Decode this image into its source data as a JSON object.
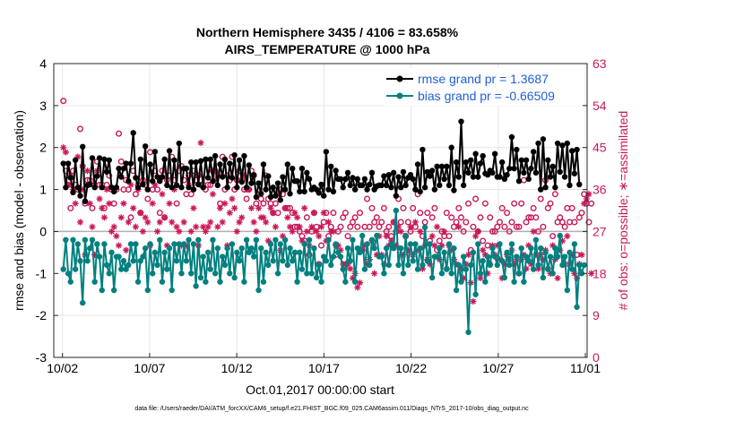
{
  "chart_data": {
    "type": "line",
    "title_line1": "Northern Hemisphere 3435 / 4106 = 83.658%",
    "title_line2": "AIRS_TEMPERATURE @ 1000 hPa",
    "ylabel": "rmse and bias (model - observation)",
    "ylabel_right": "# of obs: o=possible; ∗=assimilated",
    "xlabel": "Oct.01,2017 00:00:00 start",
    "footer": "data file: /Users/raeder/DAI/ATM_forcXX/CAM6_setup/f.e21.FHIST_BGC.f09_025.CAM6assim.011/Diags_NTrS_2017-10/obs_diag_output.nc",
    "ylim": [
      -3,
      4
    ],
    "ylim_right": [
      0,
      63
    ],
    "xlim": [
      0.5,
      31.1
    ],
    "yticks": [
      "4",
      "3",
      "2",
      "1",
      "0",
      "-1",
      "-2",
      "-3"
    ],
    "yticks_right": [
      "63",
      "54",
      "45",
      "36",
      "27",
      "18",
      "9",
      "0"
    ],
    "xticks": [
      "10/02",
      "10/07",
      "10/12",
      "10/17",
      "10/22",
      "10/27",
      "11/01"
    ],
    "legend": [
      "rmse grand pr = 1.3687",
      "bias grand pr = -0.66509"
    ],
    "colors": {
      "rmse": "#000000",
      "bias": "#00807f",
      "obs": "#c8195a",
      "zero": "#b0b0b0"
    },
    "series": [
      {
        "name": "rmse grand pr = 1.3687",
        "values": [
          1.62,
          1.05,
          1.62,
          1.28,
          0.93,
          1.7,
          1.05,
          0.85,
          2.02,
          0.72,
          1.1,
          1.12,
          1.75,
          1.05,
          1.32,
          1.75,
          1.05,
          1.72,
          1.42,
          1.7,
          1.05,
          0.95,
          1.05,
          1.5,
          1.3,
          1.5,
          1.62,
          1.2,
          1.62,
          2.35,
          1.28,
          1.05,
          1.72,
          1.12,
          2.03,
          1.0,
          1.6,
          1.2,
          1.9,
          1.3,
          1.2,
          1.3,
          1.72,
          1.1,
          1.92,
          1.05,
          1.7,
          1.1,
          2.1,
          1.05,
          1.5,
          1.5,
          1.05,
          1.65,
          1.0,
          1.65,
          1.12,
          1.68,
          1.05,
          1.72,
          1.28,
          1.72,
          1.2,
          1.8,
          1.1,
          1.6,
          1.3,
          1.72,
          1.05,
          1.62,
          1.28,
          1.82,
          1.05,
          1.7,
          1.18,
          1.8,
          1.05,
          1.58,
          1.15,
          1.35,
          0.82,
          1.15,
          0.9,
          1.6,
          1.0,
          1.32,
          0.82,
          1.05,
          0.85,
          1.15,
          0.75,
          1.3,
          1.0,
          1.6,
          0.9,
          1.5,
          1.2,
          1.2,
          0.95,
          1.5,
          0.95,
          1.4,
          1.25,
          1.0,
          1.05,
          1.0,
          0.92,
          1.12,
          0.85,
          1.9,
          1.0,
          1.55,
          0.95,
          1.45,
          1.25,
          1.25,
          1.05,
          1.25,
          1.4,
          1.1,
          1.28,
          1.0,
          1.25,
          1.1,
          1.1,
          1.25,
          1.0,
          1.12,
          1.4,
          1.0,
          1.08,
          1.1,
          1.1,
          1.32,
          1.1,
          1.35,
          1.05,
          1.4,
          0.85,
          1.3,
          1.05,
          1.42,
          1.1,
          1.28,
          1.35,
          1.25,
          1.0,
          1.6,
          0.95,
          1.95,
          1.05,
          1.42,
          1.32,
          1.45,
          1.0,
          1.55,
          1.1,
          1.55,
          1.25,
          1.55,
          1.1,
          2.0,
          0.98,
          1.65,
          1.3,
          2.62,
          1.1,
          1.65,
          1.4,
          1.7,
          1.3,
          1.85,
          1.3,
          1.62,
          1.8,
          1.38,
          1.35,
          1.45,
          1.4,
          1.85,
          1.3,
          1.3,
          1.65,
          1.25,
          1.35,
          1.5,
          2.25,
          1.5,
          1.95,
          1.2,
          1.7,
          1.4,
          1.7,
          1.25,
          1.5,
          1.9,
          1.4,
          2.1,
          1.0,
          2.2,
          1.05,
          1.7,
          1.3,
          1.55,
          1.05,
          2.1,
          1.42,
          2.05,
          1.3,
          2.1,
          1.1,
          1.92,
          1.38,
          1.95,
          1.12
        ]
      },
      {
        "name": "bias grand pr = -0.66509",
        "values": [
          -0.9,
          -0.2,
          -1.0,
          -1.2,
          -0.2,
          -0.9,
          -0.3,
          -0.7,
          -1.7,
          -0.2,
          -0.7,
          -0.4,
          -0.2,
          -1.2,
          -0.3,
          -0.6,
          -1.4,
          -0.3,
          -0.8,
          -1.0,
          -0.5,
          -1.4,
          -0.6,
          -0.6,
          -0.9,
          -0.7,
          -0.9,
          -0.8,
          -0.3,
          -0.7,
          -0.3,
          -1.2,
          -0.7,
          -0.6,
          -0.4,
          -1.4,
          -0.3,
          -1.0,
          -0.5,
          -0.8,
          -0.2,
          -1.2,
          -0.5,
          -0.9,
          -0.4,
          -1.4,
          -0.3,
          -0.7,
          -0.3,
          -1.0,
          -0.3,
          -0.7,
          -0.2,
          -1.0,
          -0.3,
          -1.3,
          -0.2,
          -1.1,
          -0.6,
          -1.2,
          -0.5,
          -0.9,
          -0.2,
          -1.0,
          -0.4,
          -1.2,
          -0.6,
          -0.8,
          -0.4,
          -1.0,
          -0.3,
          -1.1,
          -0.5,
          -0.7,
          -0.4,
          -1.2,
          -0.2,
          -0.5,
          -0.4,
          -0.6,
          -0.2,
          -1.4,
          -0.4,
          -1.2,
          -0.5,
          -0.8,
          -0.3,
          -0.7,
          -0.2,
          -1.0,
          -0.3,
          -0.7,
          -0.2,
          -0.8,
          -0.4,
          -0.7,
          -0.5,
          -1.2,
          -0.5,
          -0.9,
          -0.3,
          -1.0,
          -0.2,
          -1.0,
          -0.4,
          -1.1,
          -0.8,
          -1.2,
          -0.6,
          -0.7,
          -0.2,
          -0.8,
          -0.6,
          -0.3,
          -0.5,
          -0.6,
          -0.9,
          -1.2,
          -0.4,
          -0.7,
          -0.2,
          -1.2,
          -0.4,
          -0.5,
          -0.1,
          -0.9,
          -0.3,
          -0.8,
          -0.2,
          -0.4,
          -0.1,
          -0.6,
          -0.6,
          -1.0,
          -0.4,
          -0.8,
          -0.3,
          -0.4,
          0.5,
          -0.8,
          -0.4,
          -1.0,
          -0.1,
          -0.8,
          -0.3,
          -0.7,
          -0.3,
          -0.9,
          -0.4,
          -0.8,
          0.1,
          -0.7,
          -0.3,
          -1.1,
          -0.6,
          -0.6,
          -0.4,
          -1.0,
          -0.5,
          -0.9,
          -0.3,
          -1.0,
          -0.4,
          -1.4,
          -0.8,
          -1.2,
          -0.6,
          -0.9,
          -2.4,
          -0.8,
          -0.5,
          -1.5,
          -0.3,
          -1.0,
          -0.7,
          -1.2,
          -0.6,
          -0.8,
          -0.4,
          -0.6,
          -0.8,
          -0.3,
          -0.7,
          -1.1,
          -0.5,
          -0.8,
          -0.3,
          -1.2,
          -0.6,
          -1.0,
          -0.4,
          -1.2,
          -0.6,
          -0.7,
          -0.4,
          -0.9,
          -0.2,
          -0.8,
          -0.4,
          -1.1,
          -0.5,
          -0.9,
          -0.6,
          -1.0,
          -0.4,
          -0.6,
          -0.1,
          -0.8,
          -0.6,
          -1.4,
          -0.5,
          -0.9,
          -0.3,
          -1.8,
          -0.8,
          -1.0,
          -0.8
        ]
      },
      {
        "name": "possible",
        "values": [
          55,
          40,
          37,
          32,
          40,
          37,
          36,
          49,
          41,
          33,
          38,
          38,
          32,
          37,
          42,
          37,
          37,
          32,
          37,
          39,
          36,
          33,
          36,
          48,
          42,
          36,
          38,
          36,
          30,
          40,
          35,
          37,
          31,
          38,
          37,
          34,
          44,
          36,
          40,
          36,
          31,
          40,
          30,
          38,
          39,
          43,
          38,
          33,
          40,
          41,
          38,
          35,
          39,
          35,
          40,
          38,
          39,
          37,
          37,
          36,
          37,
          37,
          40,
          40,
          39,
          33,
          43,
          36,
          39,
          38,
          43,
          36,
          38,
          40,
          38,
          36,
          34,
          36,
          40,
          39,
          33,
          35,
          34,
          33,
          39,
          34,
          33,
          31,
          33,
          31,
          36,
          35,
          32,
          32,
          32,
          31,
          28,
          28,
          27,
          26,
          25,
          30,
          22,
          27,
          31,
          28,
          20,
          24,
          29,
          31,
          26,
          28,
          31,
          22,
          27,
          28,
          30,
          31,
          26,
          28,
          29,
          30,
          28,
          31,
          23,
          28,
          34,
          28,
          32,
          29,
          30,
          28,
          29,
          32,
          27,
          28,
          26,
          29,
          27,
          34,
          29,
          32,
          26,
          29,
          27,
          32,
          28,
          35,
          31,
          26,
          29,
          31,
          25,
          30,
          32,
          23,
          25,
          27,
          26,
          31,
          26,
          30,
          28,
          29,
          32,
          30,
          27,
          29,
          33,
          23,
          28,
          34,
          27,
          30,
          25,
          33,
          24,
          30,
          27,
          27,
          28,
          29,
          32,
          28,
          31,
          27,
          29,
          33,
          28,
          28,
          33,
          38,
          29,
          30,
          30,
          32,
          30,
          27,
          34,
          28,
          38,
          32,
          33,
          26,
          35,
          29,
          30,
          29,
          28,
          32,
          29,
          32,
          29,
          22,
          30,
          31,
          35,
          33,
          29,
          33
        ]
      },
      {
        "name": "assimilated",
        "values": [
          45,
          44,
          37,
          39,
          36,
          33,
          43,
          29,
          36,
          22,
          40,
          33,
          28,
          22,
          40,
          34,
          32,
          30,
          36,
          33,
          27,
          28,
          26,
          24,
          30,
          33,
          23,
          29,
          37,
          32,
          28,
          36,
          31,
          27,
          30,
          29,
          24,
          33,
          37,
          27,
          29,
          35,
          30,
          24,
          33,
          29,
          36,
          28,
          27,
          24,
          29,
          24,
          37,
          27,
          32,
          28,
          24,
          46,
          28,
          27,
          28,
          29,
          35,
          38,
          28,
          32,
          29,
          33,
          24,
          31,
          34,
          32,
          27,
          29,
          30,
          39,
          36,
          36,
          32,
          29,
          27,
          32,
          30,
          30,
          29,
          25,
          32,
          31,
          28,
          35,
          23,
          26,
          32,
          30,
          28,
          27,
          31,
          30,
          28,
          25,
          32,
          27,
          24,
          28,
          31,
          27,
          26,
          28,
          31,
          25,
          29,
          27,
          27,
          24,
          24,
          23,
          20,
          20,
          20,
          19,
          17,
          18,
          15,
          16,
          23,
          24,
          20,
          21,
          25,
          18,
          22,
          26,
          22,
          20,
          26,
          24,
          25,
          29,
          24,
          28,
          27,
          22,
          26,
          23,
          28,
          22,
          29,
          23,
          27,
          19,
          24,
          21,
          20,
          26,
          24,
          28,
          21,
          24,
          27,
          19,
          24,
          23,
          21,
          20,
          28,
          19,
          17,
          20,
          22,
          16,
          12,
          26,
          27,
          17,
          23,
          22,
          18,
          20,
          24,
          22,
          24,
          21,
          17,
          20,
          22,
          21,
          23,
          20,
          21,
          18,
          21,
          22,
          19,
          24,
          20,
          27,
          22,
          19,
          22,
          21,
          23,
          19,
          18,
          24,
          21,
          17,
          23,
          25,
          20,
          26,
          20,
          22,
          18,
          17,
          20,
          22,
          33,
          34,
          35,
          18
        ]
      }
    ]
  }
}
